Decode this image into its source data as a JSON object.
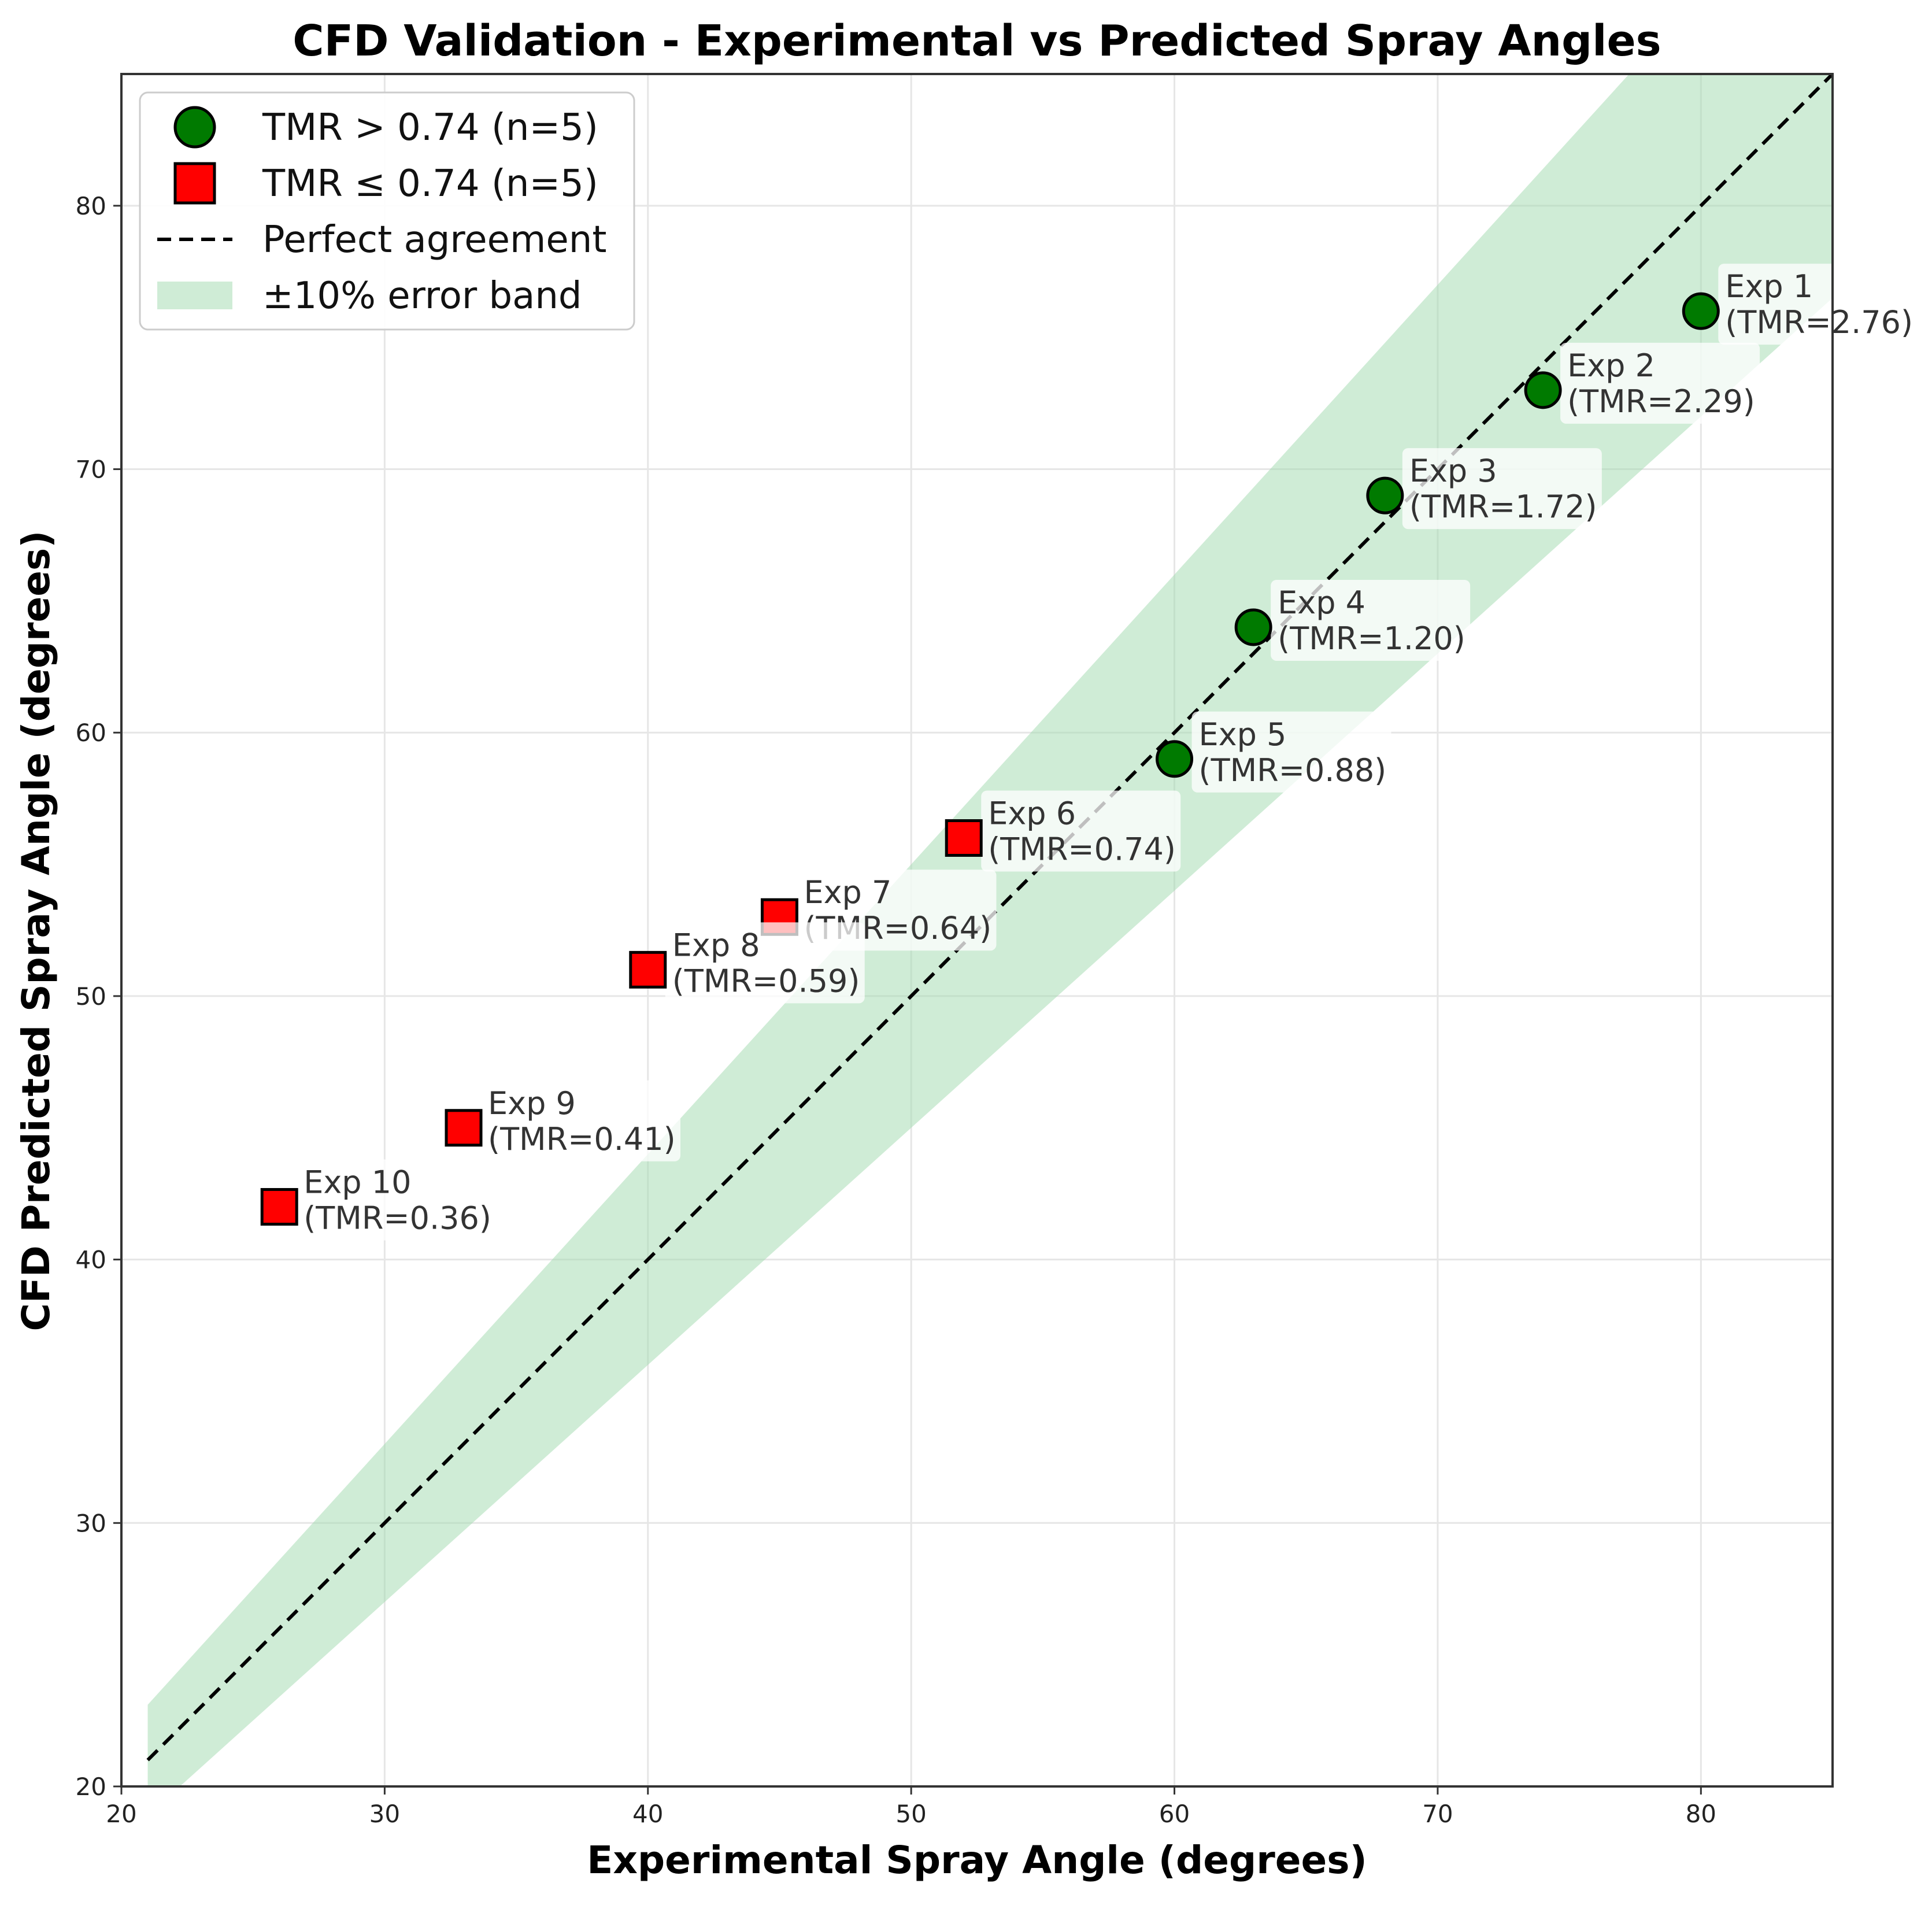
{
  "chart_data": {
    "type": "scatter",
    "title": "CFD Validation - Experimental vs Predicted Spray Angles",
    "xlabel": "Experimental Spray Angle (degrees)",
    "ylabel": "CFD Predicted Spray Angle (degrees)",
    "xlim": [
      20,
      85
    ],
    "ylim": [
      20,
      85
    ],
    "xticks": [
      20,
      30,
      40,
      50,
      60,
      70,
      80
    ],
    "yticks": [
      20,
      30,
      40,
      50,
      60,
      70,
      80
    ],
    "grid": true,
    "legend_position": "top-left",
    "error_band_pct": 10,
    "reference_line": {
      "name": "Perfect agreement",
      "x": [
        21,
        85
      ],
      "y": [
        21,
        85
      ]
    },
    "series": [
      {
        "name": "TMR > 0.74 (n=5)",
        "marker": "circle",
        "color": "#007a00",
        "points": [
          {
            "x": 80,
            "y": 76,
            "label": "Exp 1",
            "tmr": "(TMR=2.76)"
          },
          {
            "x": 74,
            "y": 73,
            "label": "Exp 2",
            "tmr": "(TMR=2.29)"
          },
          {
            "x": 68,
            "y": 69,
            "label": "Exp 3",
            "tmr": "(TMR=1.72)"
          },
          {
            "x": 63,
            "y": 64,
            "label": "Exp 4",
            "tmr": "(TMR=1.20)"
          },
          {
            "x": 60,
            "y": 59,
            "label": "Exp 5",
            "tmr": "(TMR=0.88)"
          }
        ]
      },
      {
        "name": "TMR ≤ 0.74 (n=5)",
        "marker": "square",
        "color": "#ff0000",
        "points": [
          {
            "x": 52,
            "y": 56,
            "label": "Exp 6",
            "tmr": "(TMR=0.74)"
          },
          {
            "x": 45,
            "y": 53,
            "label": "Exp 7",
            "tmr": "(TMR=0.64)"
          },
          {
            "x": 40,
            "y": 51,
            "label": "Exp 8",
            "tmr": "(TMR=0.59)"
          },
          {
            "x": 33,
            "y": 45,
            "label": "Exp 9",
            "tmr": "(TMR=0.41)"
          },
          {
            "x": 26,
            "y": 42,
            "label": "Exp 10",
            "tmr": "(TMR=0.36)"
          }
        ]
      }
    ],
    "legend": [
      {
        "label": "TMR > 0.74 (n=5)",
        "kind": "circle",
        "color": "#007a00"
      },
      {
        "label": "TMR ≤ 0.74 (n=5)",
        "kind": "square",
        "color": "#ff0000"
      },
      {
        "label": "Perfect agreement",
        "kind": "dashed-line",
        "color": "#000000"
      },
      {
        "label": "±10% error band",
        "kind": "band",
        "color": "#9fd9ad"
      }
    ]
  }
}
